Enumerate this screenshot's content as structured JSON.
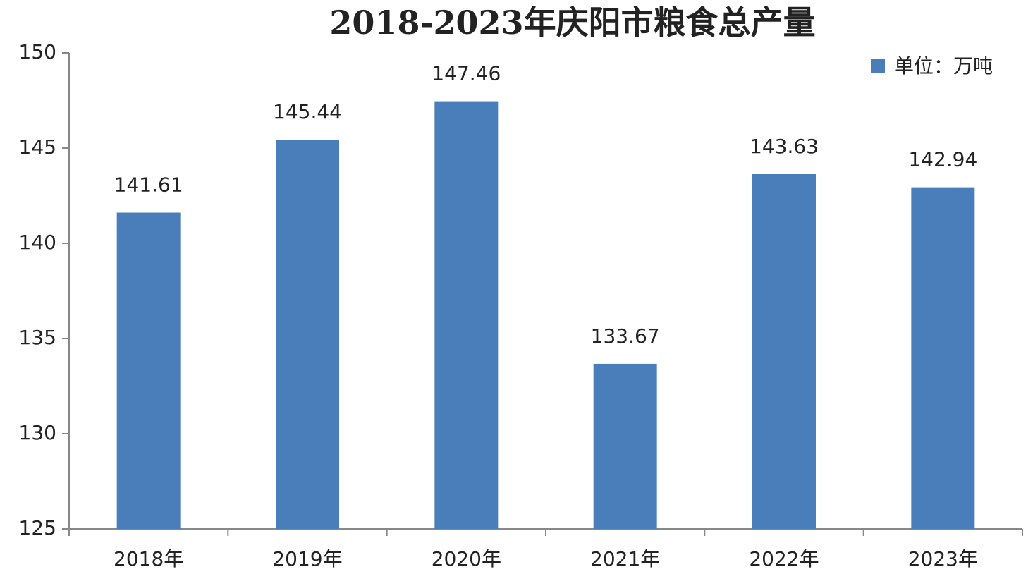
{
  "chart_data": {
    "type": "bar",
    "title": "2018-2023年庆阳市粮食总产量",
    "categories": [
      "2018年",
      "2019年",
      "2020年",
      "2021年",
      "2022年",
      "2023年"
    ],
    "series": [
      {
        "name": "单位：万吨",
        "color": "#4a7ebb",
        "values": [
          141.61,
          145.44,
          147.46,
          133.67,
          143.63,
          142.94
        ]
      }
    ],
    "ylim": [
      125,
      150
    ],
    "yticks": [
      125,
      130,
      135,
      140,
      145,
      150
    ],
    "grid": false,
    "legend": "top-right"
  }
}
